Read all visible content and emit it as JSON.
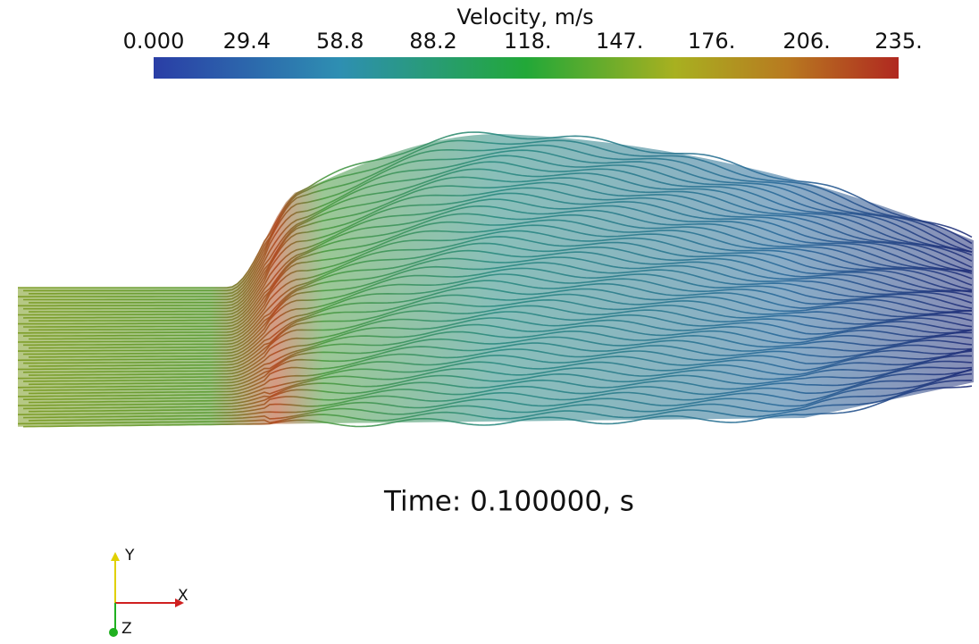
{
  "colorbar": {
    "title": "Velocity, m/s",
    "range": [
      0,
      235
    ],
    "ticks": [
      {
        "value": 0,
        "label": "0.000"
      },
      {
        "value": 29.4,
        "label": "29.4"
      },
      {
        "value": 58.8,
        "label": "58.8"
      },
      {
        "value": 88.2,
        "label": "88.2"
      },
      {
        "value": 118,
        "label": "118."
      },
      {
        "value": 147,
        "label": "147."
      },
      {
        "value": 176,
        "label": "176."
      },
      {
        "value": 206,
        "label": "206."
      },
      {
        "value": 235,
        "label": "235."
      }
    ]
  },
  "time_label": "Time: 0.100000, s",
  "axes": {
    "x": "X",
    "y": "Y",
    "z": "Z"
  }
}
